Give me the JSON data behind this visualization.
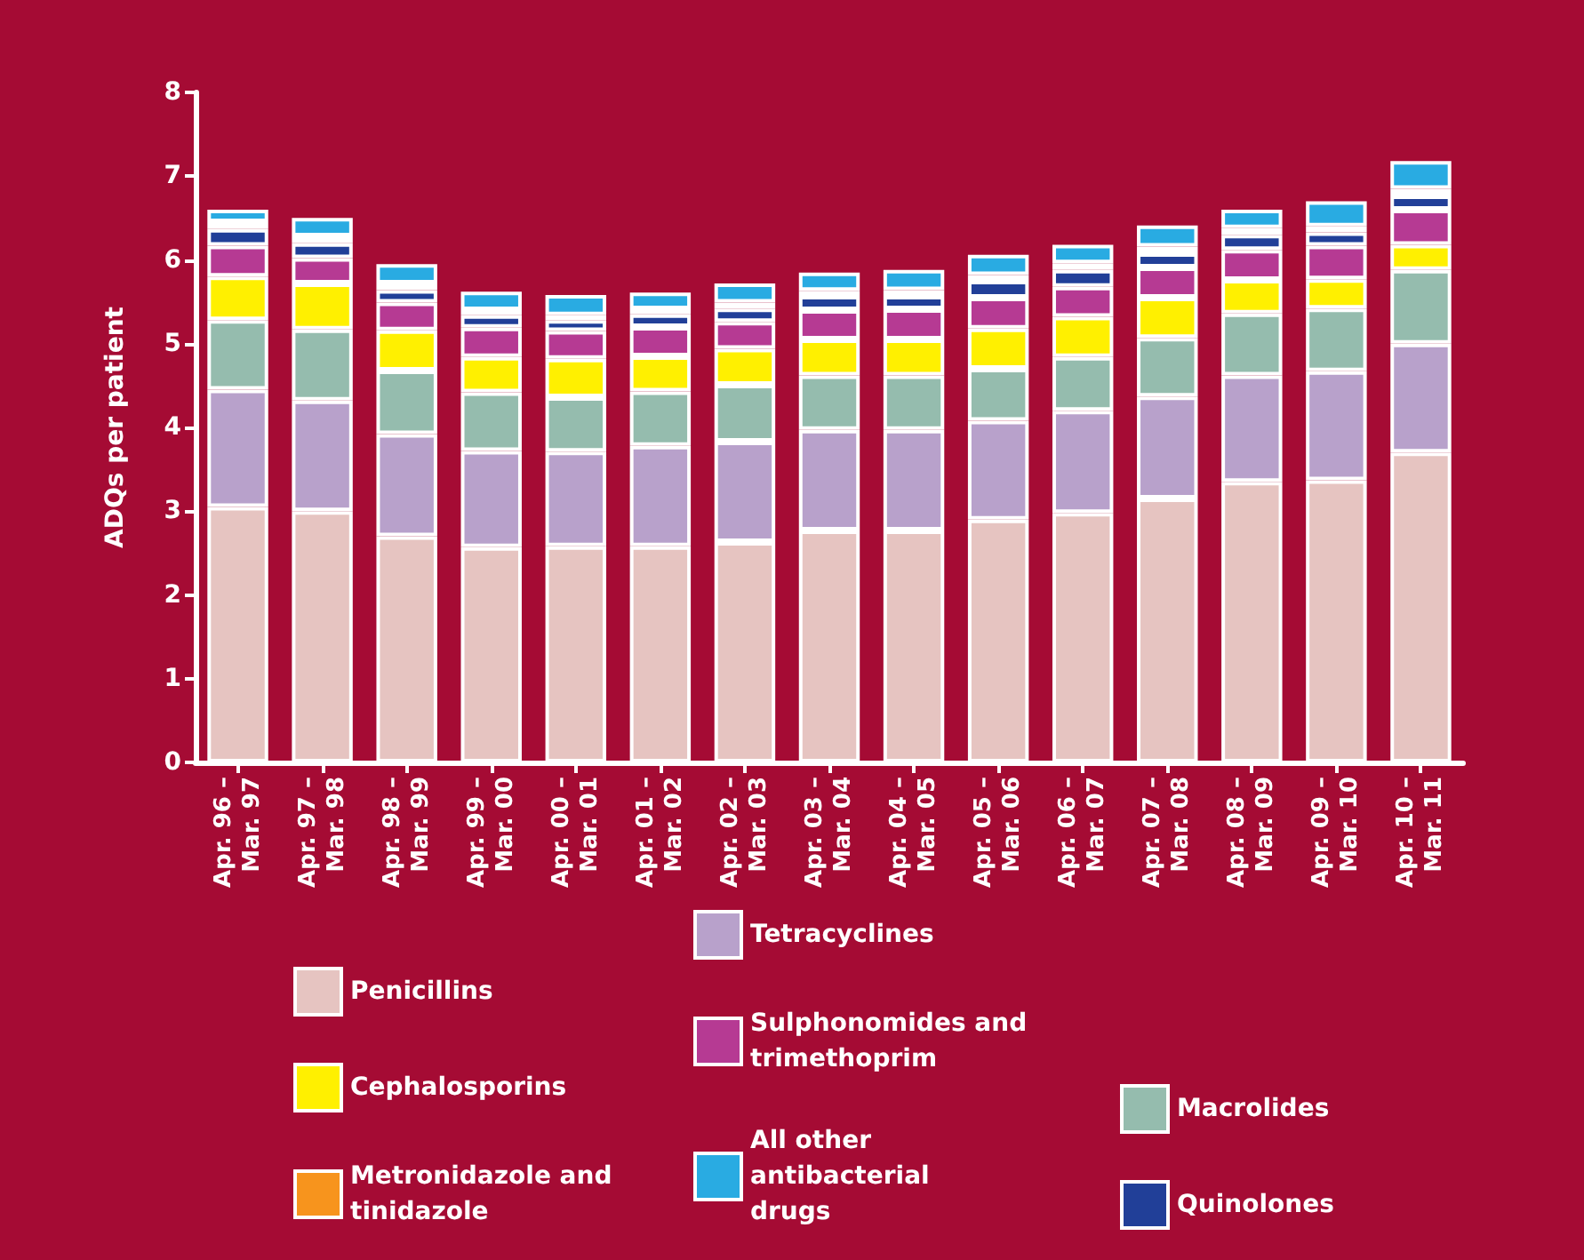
{
  "chart_data": {
    "type": "bar",
    "stacked": true,
    "ylabel": "ADQs per patient",
    "ylim": [
      0,
      8
    ],
    "yticks": [
      0,
      1,
      2,
      3,
      4,
      5,
      6,
      7,
      8
    ],
    "grid": false,
    "legend": "bottom",
    "categories": [
      "Apr. 96 – Mar. 97",
      "Apr. 97 – Mar. 98",
      "Apr. 98 – Mar. 99",
      "Apr. 99 – Mar. 00",
      "Apr. 00 – Mar. 01",
      "Apr. 01 – Mar. 02",
      "Apr. 02 – Mar. 03",
      "Apr. 03 – Mar. 04",
      "Apr. 04 – Mar. 05",
      "Apr. 05 – Mar. 06",
      "Apr. 06 – Mar. 07",
      "Apr. 07 – Mar. 08",
      "Apr. 08 – Mar. 09",
      "Apr. 09 – Mar. 10",
      "Apr. 10 – Mar. 11"
    ],
    "series": [
      {
        "name": "Penicillins",
        "color": "#e6c4c1",
        "values": [
          3.05,
          3.0,
          2.7,
          2.57,
          2.58,
          2.58,
          2.63,
          2.77,
          2.77,
          2.9,
          2.98,
          3.15,
          3.35,
          3.37,
          3.7
        ]
      },
      {
        "name": "Tetracyclines",
        "color": "#b8a1cb",
        "values": [
          1.4,
          1.32,
          1.22,
          1.15,
          1.13,
          1.2,
          1.2,
          1.2,
          1.2,
          1.18,
          1.22,
          1.22,
          1.27,
          1.3,
          1.3
        ]
      },
      {
        "name": "Macrolides",
        "color": "#95bcae",
        "values": [
          0.83,
          0.85,
          0.76,
          0.7,
          0.65,
          0.65,
          0.68,
          0.65,
          0.65,
          0.62,
          0.64,
          0.7,
          0.74,
          0.75,
          0.88
        ]
      },
      {
        "name": "Cephalosporins",
        "color": "#fff000",
        "values": [
          0.52,
          0.55,
          0.48,
          0.42,
          0.46,
          0.42,
          0.43,
          0.43,
          0.43,
          0.48,
          0.48,
          0.48,
          0.4,
          0.35,
          0.3
        ]
      },
      {
        "name": "Sulphonomides and trimethoprim",
        "color": "#b63a93",
        "values": [
          0.37,
          0.3,
          0.33,
          0.35,
          0.33,
          0.35,
          0.32,
          0.35,
          0.36,
          0.37,
          0.36,
          0.36,
          0.36,
          0.4,
          0.42
        ]
      },
      {
        "name": "Quinolones",
        "color": "#213f98",
        "values": [
          0.2,
          0.18,
          0.15,
          0.15,
          0.13,
          0.15,
          0.16,
          0.17,
          0.16,
          0.2,
          0.2,
          0.17,
          0.18,
          0.16,
          0.17
        ]
      },
      {
        "name": "Metronidazole and tinidazole",
        "color": "#f7941d",
        "values": [
          0.08,
          0.08,
          0.08,
          0.06,
          0.06,
          0.06,
          0.07,
          0.06,
          0.07,
          0.07,
          0.08,
          0.08,
          0.08,
          0.07,
          0.08
        ]
      },
      {
        "name": "All other antibacterial drugs",
        "color": "#29abe2",
        "values": [
          0.15,
          0.22,
          0.23,
          0.22,
          0.24,
          0.2,
          0.23,
          0.22,
          0.24,
          0.24,
          0.22,
          0.25,
          0.22,
          0.3,
          0.33
        ]
      }
    ]
  }
}
